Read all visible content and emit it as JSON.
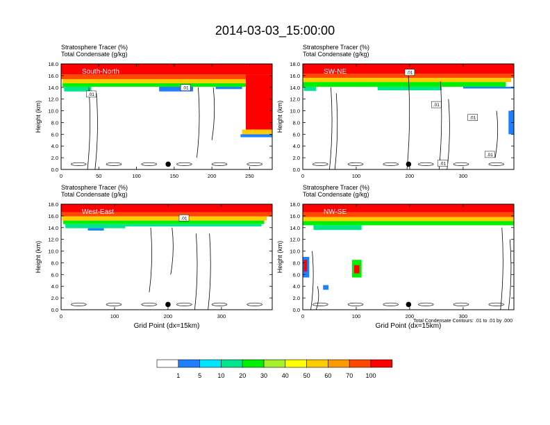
{
  "figure": {
    "title": "2014-03-03_15:00:00",
    "footnote": "Total Condensate Contours: .01 to .01 by .000",
    "legend": {
      "colors": [
        "#ffffff",
        "#1e7fff",
        "#00e5ff",
        "#00e68c",
        "#00f000",
        "#a4f02a",
        "#ffff00",
        "#ffcc00",
        "#ff9900",
        "#ff4800",
        "#ff0000"
      ],
      "labels": [
        "1",
        "5",
        "10",
        "20",
        "30",
        "40",
        "50",
        "60",
        "70",
        "100"
      ]
    }
  },
  "chart_data": [
    {
      "type": "heatmap",
      "label": "South-North",
      "header_line1": "Stratosphere Tracer   (%)",
      "header_line2": "Total Condensate   (g/kg)",
      "ylabel": "Height (km)",
      "xlabel": "",
      "xlim": [
        0,
        280
      ],
      "ylim": [
        0,
        18
      ],
      "xticks": [
        0,
        50,
        100,
        150,
        200,
        250
      ],
      "yticks": [
        "0.0",
        "2.0",
        "4.0",
        "6.0",
        "8.0",
        "10.0",
        "12.0",
        "14.0",
        "16.0",
        "18.0"
      ],
      "marker_x": 142,
      "contour_labels": [
        ".01",
        ".01"
      ]
    },
    {
      "type": "heatmap",
      "label": "SW-NE",
      "header_line1": "Stratosphere Tracer   (%)",
      "header_line2": "Total Condensate   (g/kg)",
      "ylabel": "Height (km)",
      "xlabel": "",
      "xlim": [
        0,
        395
      ],
      "ylim": [
        0,
        18
      ],
      "xticks": [
        0,
        100,
        200,
        300
      ],
      "yticks": [
        "0.0",
        "2.0",
        "4.0",
        "6.0",
        "8.0",
        "10.0",
        "12.0",
        "14.0",
        "16.0",
        "18.0"
      ],
      "marker_x": 198,
      "contour_labels": [
        ".01",
        ".01",
        ".01",
        ".01",
        ".01"
      ]
    },
    {
      "type": "heatmap",
      "label": "West-East",
      "header_line1": "Stratosphere Tracer   (%)",
      "header_line2": "Total Condensate   (g/kg)",
      "ylabel": "Height (km)",
      "xlabel": "Grid Point (dx=15km)",
      "xlim": [
        0,
        395
      ],
      "ylim": [
        0,
        18
      ],
      "xticks": [
        0,
        100,
        200,
        300
      ],
      "yticks": [
        "0.0",
        "2.0",
        "4.0",
        "6.0",
        "8.0",
        "10.0",
        "12.0",
        "14.0",
        "16.0",
        "18.0"
      ],
      "marker_x": 200,
      "contour_labels": [
        ".01"
      ]
    },
    {
      "type": "heatmap",
      "label": "NW-SE",
      "header_line1": "Stratosphere Tracer   (%)",
      "header_line2": "Total Condensate   (g/kg)",
      "ylabel": "Height (km)",
      "xlabel": "Grid Point (dx=15km)",
      "xlim": [
        0,
        395
      ],
      "ylim": [
        0,
        18
      ],
      "xticks": [
        0,
        100,
        200,
        300
      ],
      "yticks": [
        "0.0",
        "2.0",
        "4.0",
        "6.0",
        "8.0",
        "10.0",
        "12.0",
        "14.0",
        "16.0",
        "18.0"
      ],
      "marker_x": 198,
      "contour_labels": []
    }
  ]
}
